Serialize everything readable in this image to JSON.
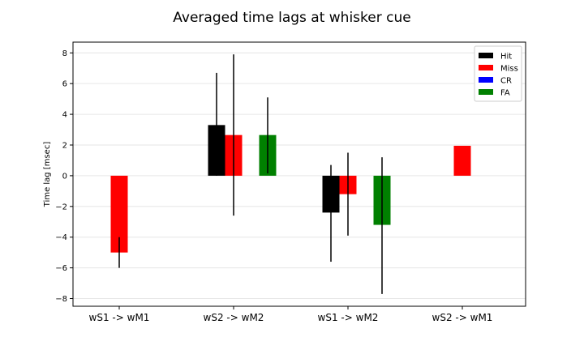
{
  "chart_data": {
    "type": "bar",
    "title": "Averaged time lags at whisker cue",
    "xlabel": "",
    "ylabel": "Time lag [msec]",
    "ylim": [
      -8.5,
      8.7
    ],
    "yticks": [
      -8,
      -6,
      -4,
      -2,
      0,
      2,
      4,
      6,
      8
    ],
    "ytick_labels": [
      "−8",
      "−6",
      "−4",
      "−2",
      "0",
      "2",
      "4",
      "6",
      "8"
    ],
    "grid": "horizontal",
    "legend_position": "top-right",
    "categories": [
      "wS1 -> wM1",
      "wS2 -> wM2",
      "wS1 -> wM2",
      "wS2 -> wM1"
    ],
    "series": [
      {
        "name": "Hit",
        "color": "#000000",
        "values": [
          null,
          3.3,
          -2.4,
          null
        ],
        "err_low": [
          null,
          0.0,
          -5.6,
          null
        ],
        "err_high": [
          null,
          6.7,
          0.7,
          null
        ]
      },
      {
        "name": "Miss",
        "color": "#ff0000",
        "values": [
          -5.0,
          2.65,
          -1.2,
          1.95
        ],
        "err_low": [
          -6.0,
          -2.6,
          -3.9,
          null
        ],
        "err_high": [
          -4.0,
          7.9,
          1.5,
          null
        ]
      },
      {
        "name": "CR",
        "color": "#0000ff",
        "values": [
          null,
          null,
          null,
          null
        ],
        "err_low": [
          null,
          null,
          null,
          null
        ],
        "err_high": [
          null,
          null,
          null,
          null
        ]
      },
      {
        "name": "FA",
        "color": "#008000",
        "values": [
          null,
          2.65,
          -3.2,
          null
        ],
        "err_low": [
          null,
          0.15,
          -7.7,
          null
        ],
        "err_high": [
          null,
          5.1,
          1.2,
          null
        ]
      }
    ]
  }
}
